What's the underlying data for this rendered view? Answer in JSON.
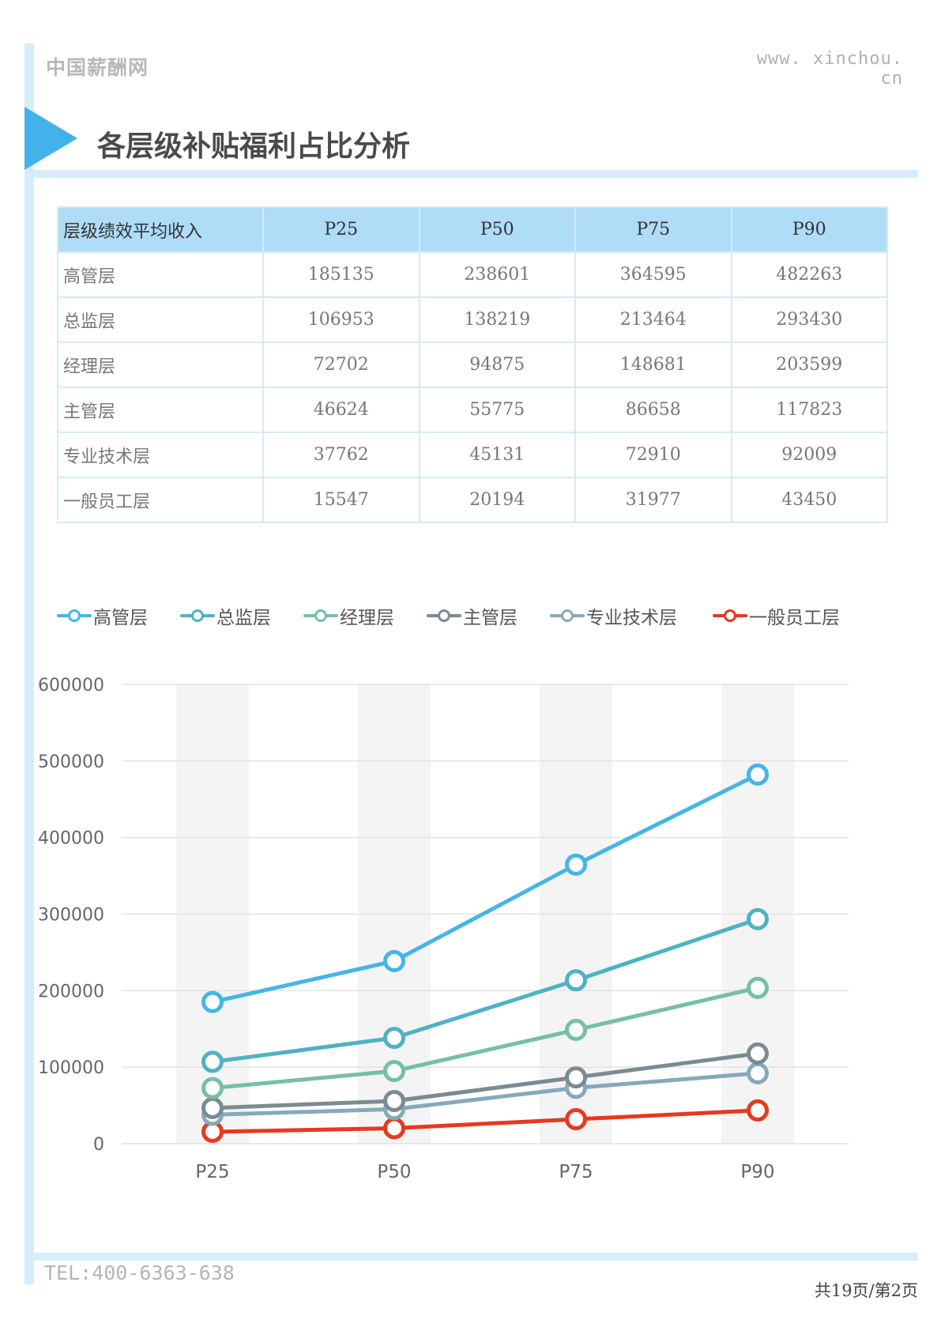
{
  "header": {
    "brand": "中国薪酬网",
    "site": "www. xinchou. cn",
    "title": "各层级补贴福利占比分析"
  },
  "table": {
    "header": [
      "层级绩效平均收入",
      "P25",
      "P50",
      "P75",
      "P90"
    ],
    "rows": [
      [
        "高管层",
        "185135",
        "238601",
        "364595",
        "482263"
      ],
      [
        "总监层",
        "106953",
        "138219",
        "213464",
        "293430"
      ],
      [
        "经理层",
        "72702",
        "94875",
        "148681",
        "203599"
      ],
      [
        "主管层",
        "46624",
        "55775",
        "86658",
        "117823"
      ],
      [
        "专业技术层",
        "37762",
        "45131",
        "72910",
        "92009"
      ],
      [
        "一般员工层",
        "15547",
        "20194",
        "31977",
        "43450"
      ]
    ]
  },
  "chart_data": {
    "type": "line",
    "categories": [
      "P25",
      "P50",
      "P75",
      "P90"
    ],
    "ylim": [
      0,
      600000
    ],
    "yticks": [
      0,
      100000,
      200000,
      300000,
      400000,
      500000,
      600000
    ],
    "grid": true,
    "legend_position": "top",
    "series": [
      {
        "name": "高管层",
        "color": "#45b5e8",
        "values": [
          185135,
          238601,
          364595,
          482263
        ]
      },
      {
        "name": "总监层",
        "color": "#4fb2c4",
        "values": [
          106953,
          138219,
          213464,
          293430
        ]
      },
      {
        "name": "经理层",
        "color": "#75c0a5",
        "values": [
          72702,
          94875,
          148681,
          203599
        ]
      },
      {
        "name": "主管层",
        "color": "#7a8b92",
        "values": [
          46624,
          55775,
          86658,
          117823
        ]
      },
      {
        "name": "专业技术层",
        "color": "#86a9bb",
        "values": [
          37762,
          45131,
          72910,
          92009
        ]
      },
      {
        "name": "一般员工层",
        "color": "#e6391f",
        "values": [
          15547,
          20194,
          31977,
          43450
        ]
      }
    ]
  },
  "footer": {
    "tel": "TEL:400-6363-638",
    "page": "共19页/第2页"
  }
}
